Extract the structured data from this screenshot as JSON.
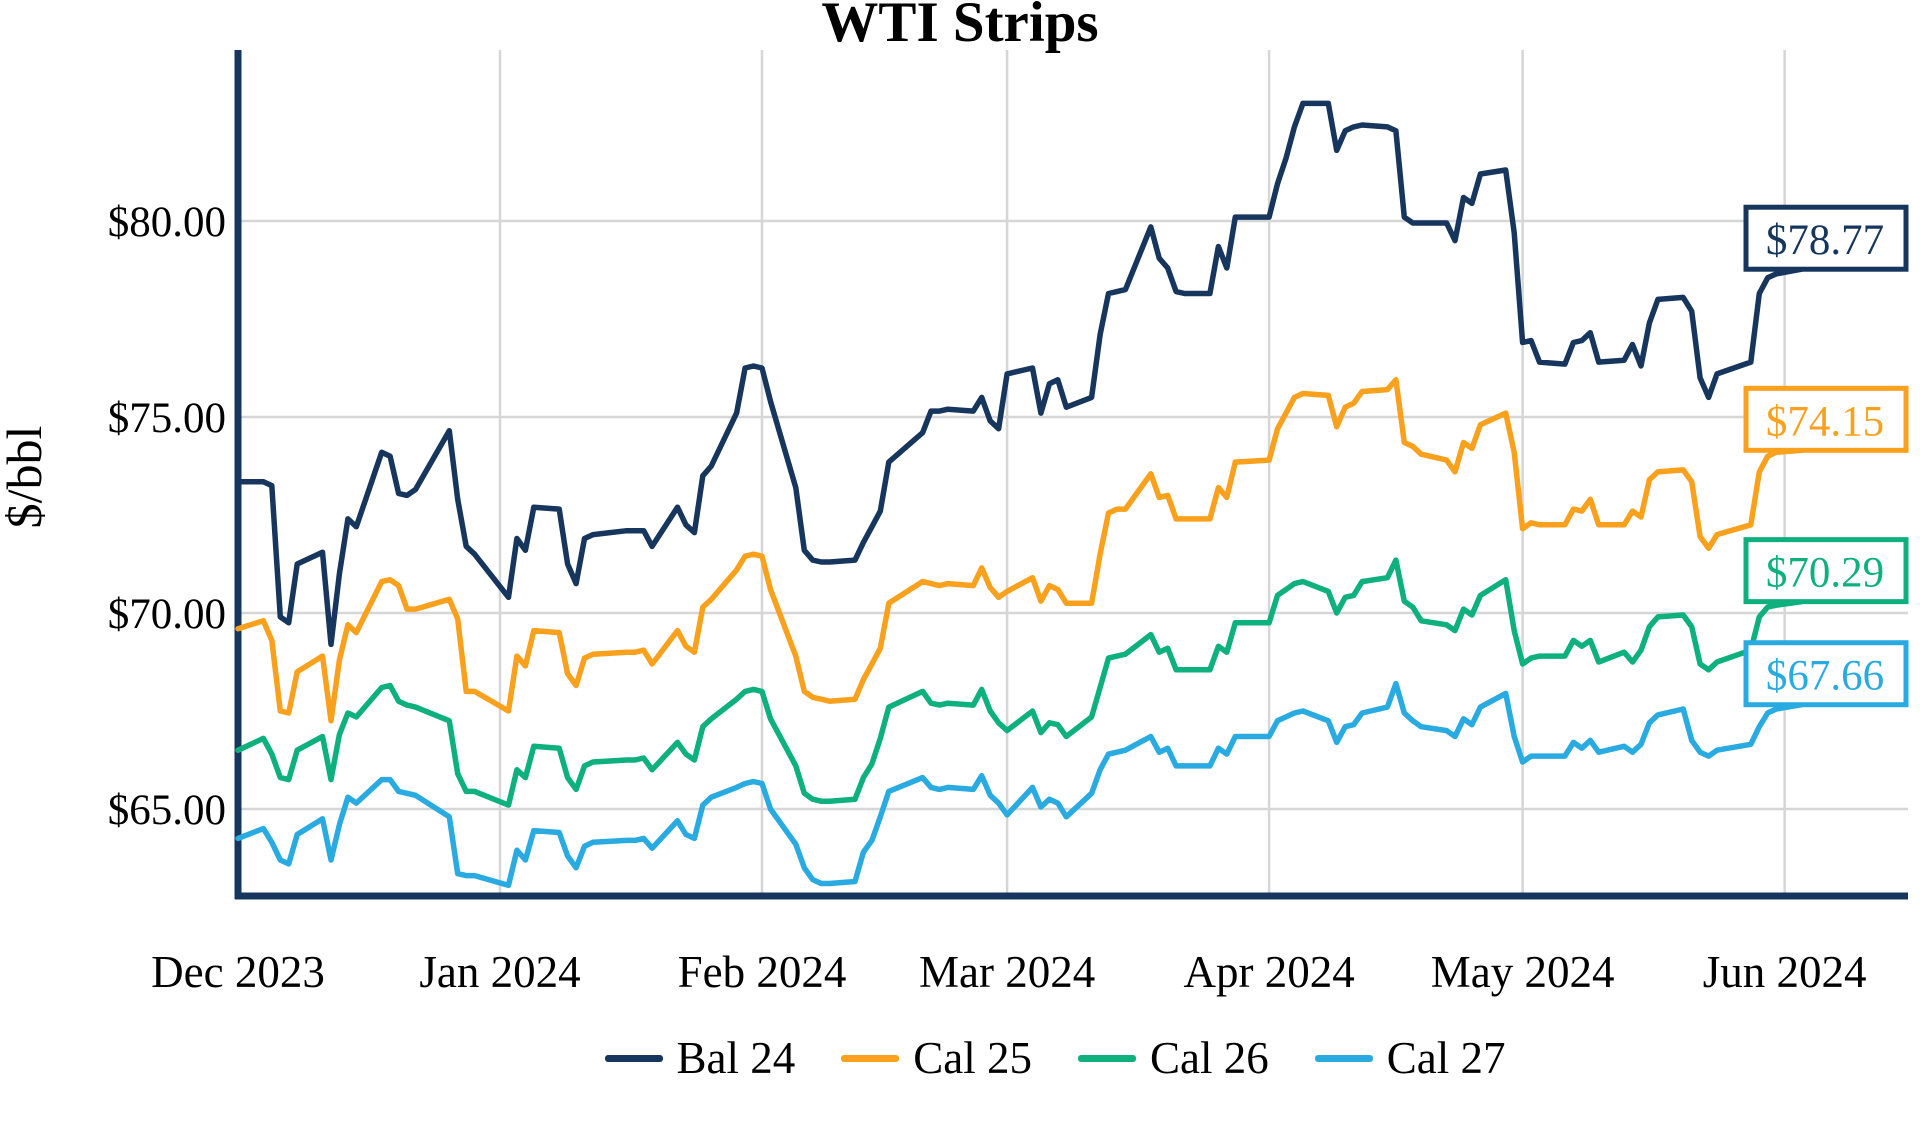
{
  "title": "WTI Strips",
  "y_axis": {
    "label": "$/bbl"
  },
  "legend": [
    {
      "label": "Bal 24",
      "color": "#17365d"
    },
    {
      "label": "Cal 25",
      "color": "#f9a11d"
    },
    {
      "label": "Cal 26",
      "color": "#0eb07d"
    },
    {
      "label": "Cal 27",
      "color": "#29abe2"
    }
  ],
  "chart_data": {
    "type": "line",
    "title": "WTI Strips",
    "ylabel": "$/bbl",
    "grid": true,
    "legend_position": "bottom",
    "ylim": [
      61.9,
      84.3
    ],
    "y_ticks": [
      {
        "value": 80,
        "label": "$80.00"
      },
      {
        "value": 75,
        "label": "$75.00"
      },
      {
        "value": 70,
        "label": "$70.00"
      },
      {
        "value": 65,
        "label": "$65.00"
      }
    ],
    "x_ticks": [
      {
        "date": "2023-12-01",
        "label": "Dec 2023"
      },
      {
        "date": "2024-01-01",
        "label": "Jan 2024"
      },
      {
        "date": "2024-02-01",
        "label": "Feb 2024"
      },
      {
        "date": "2024-03-01",
        "label": "Mar 2024"
      },
      {
        "date": "2024-04-01",
        "label": "Apr 2024"
      },
      {
        "date": "2024-05-01",
        "label": "May 2024"
      },
      {
        "date": "2024-06-01",
        "label": "Jun 2024"
      }
    ],
    "month_gridlines": [
      "2024-01-01",
      "2024-02-01",
      "2024-03-01",
      "2024-04-01",
      "2024-05-01",
      "2024-06-01"
    ],
    "dates": [
      "2023-12-01",
      "2023-12-04",
      "2023-12-05",
      "2023-12-06",
      "2023-12-07",
      "2023-12-08",
      "2023-12-11",
      "2023-12-12",
      "2023-12-13",
      "2023-12-14",
      "2023-12-15",
      "2023-12-18",
      "2023-12-19",
      "2023-12-20",
      "2023-12-21",
      "2023-12-22",
      "2023-12-26",
      "2023-12-27",
      "2023-12-28",
      "2023-12-29",
      "2024-01-02",
      "2024-01-03",
      "2024-01-04",
      "2024-01-05",
      "2024-01-08",
      "2024-01-09",
      "2024-01-10",
      "2024-01-11",
      "2024-01-12",
      "2024-01-16",
      "2024-01-17",
      "2024-01-18",
      "2024-01-19",
      "2024-01-22",
      "2024-01-23",
      "2024-01-24",
      "2024-01-25",
      "2024-01-26",
      "2024-01-29",
      "2024-01-30",
      "2024-01-31",
      "2024-02-01",
      "2024-02-02",
      "2024-02-05",
      "2024-02-06",
      "2024-02-07",
      "2024-02-08",
      "2024-02-09",
      "2024-02-12",
      "2024-02-13",
      "2024-02-14",
      "2024-02-15",
      "2024-02-16",
      "2024-02-20",
      "2024-02-21",
      "2024-02-22",
      "2024-02-23",
      "2024-02-26",
      "2024-02-27",
      "2024-02-28",
      "2024-02-29",
      "2024-03-01",
      "2024-03-04",
      "2024-03-05",
      "2024-03-06",
      "2024-03-07",
      "2024-03-08",
      "2024-03-11",
      "2024-03-12",
      "2024-03-13",
      "2024-03-14",
      "2024-03-15",
      "2024-03-18",
      "2024-03-19",
      "2024-03-20",
      "2024-03-21",
      "2024-03-22",
      "2024-03-25",
      "2024-03-26",
      "2024-03-27",
      "2024-03-28",
      "2024-04-01",
      "2024-04-02",
      "2024-04-03",
      "2024-04-04",
      "2024-04-05",
      "2024-04-08",
      "2024-04-09",
      "2024-04-10",
      "2024-04-11",
      "2024-04-12",
      "2024-04-15",
      "2024-04-16",
      "2024-04-17",
      "2024-04-18",
      "2024-04-19",
      "2024-04-22",
      "2024-04-23",
      "2024-04-24",
      "2024-04-25",
      "2024-04-26",
      "2024-04-29",
      "2024-04-30",
      "2024-05-01",
      "2024-05-02",
      "2024-05-03",
      "2024-05-06",
      "2024-05-07",
      "2024-05-08",
      "2024-05-09",
      "2024-05-10",
      "2024-05-13",
      "2024-05-14",
      "2024-05-15",
      "2024-05-16",
      "2024-05-17",
      "2024-05-20",
      "2024-05-21",
      "2024-05-22",
      "2024-05-23",
      "2024-05-24",
      "2024-05-28",
      "2024-05-29",
      "2024-05-30",
      "2024-05-31",
      "2024-06-03"
    ],
    "series": [
      {
        "name": "Bal 24",
        "color": "#17365d",
        "end_label": "$78.77",
        "end_value": 78.77,
        "values": [
          73.35,
          73.35,
          73.25,
          69.9,
          69.75,
          71.25,
          71.55,
          69.2,
          71.0,
          72.4,
          72.2,
          74.1,
          74.0,
          73.05,
          73.0,
          73.15,
          74.65,
          72.9,
          71.7,
          71.5,
          70.4,
          71.9,
          71.6,
          72.7,
          72.65,
          71.25,
          70.75,
          71.9,
          72.0,
          72.1,
          72.1,
          72.1,
          71.7,
          72.7,
          72.25,
          72.05,
          73.5,
          73.75,
          75.1,
          76.25,
          76.3,
          76.25,
          75.4,
          73.2,
          71.6,
          71.35,
          71.3,
          71.3,
          71.35,
          71.8,
          72.2,
          72.6,
          73.85,
          74.6,
          75.15,
          75.15,
          75.2,
          75.15,
          75.5,
          74.9,
          74.7,
          76.1,
          76.25,
          75.1,
          75.85,
          75.95,
          75.25,
          75.5,
          77.1,
          78.15,
          78.2,
          78.25,
          79.85,
          79.05,
          78.8,
          78.2,
          78.15,
          78.15,
          79.35,
          78.8,
          80.1,
          80.1,
          80.95,
          81.6,
          82.4,
          83.0,
          83.0,
          81.8,
          82.3,
          82.4,
          82.45,
          82.4,
          82.3,
          80.1,
          79.95,
          79.95,
          79.95,
          79.5,
          80.6,
          80.45,
          81.2,
          81.3,
          79.7,
          76.9,
          76.95,
          76.4,
          76.35,
          76.9,
          76.95,
          77.15,
          76.4,
          76.45,
          76.85,
          76.3,
          77.4,
          78.0,
          78.05,
          77.7,
          76.0,
          75.5,
          76.1,
          76.4,
          78.15,
          78.55,
          78.65,
          78.77
        ]
      },
      {
        "name": "Cal 25",
        "color": "#f9a11d",
        "end_label": "$74.15",
        "end_value": 74.15,
        "values": [
          69.6,
          69.8,
          69.3,
          67.5,
          67.45,
          68.5,
          68.9,
          67.25,
          68.8,
          69.7,
          69.5,
          70.8,
          70.85,
          70.7,
          70.1,
          70.1,
          70.35,
          69.85,
          68.0,
          68.0,
          67.5,
          68.9,
          68.65,
          69.55,
          69.5,
          68.45,
          68.15,
          68.85,
          68.95,
          69.0,
          69.0,
          69.05,
          68.7,
          69.55,
          69.15,
          69.0,
          70.15,
          70.35,
          71.1,
          71.45,
          71.5,
          71.45,
          70.6,
          68.9,
          68.0,
          67.85,
          67.8,
          67.75,
          67.8,
          68.3,
          68.7,
          69.1,
          70.25,
          70.8,
          70.75,
          70.7,
          70.75,
          70.7,
          71.15,
          70.65,
          70.4,
          70.55,
          70.9,
          70.3,
          70.7,
          70.6,
          70.25,
          70.25,
          71.5,
          72.55,
          72.65,
          72.65,
          73.55,
          72.95,
          73.0,
          72.4,
          72.4,
          72.4,
          73.2,
          72.95,
          73.85,
          73.9,
          74.7,
          75.1,
          75.5,
          75.6,
          75.55,
          74.75,
          75.25,
          75.35,
          75.65,
          75.7,
          75.95,
          74.35,
          74.25,
          74.05,
          73.9,
          73.6,
          74.35,
          74.2,
          74.8,
          75.1,
          74.1,
          72.15,
          72.3,
          72.25,
          72.25,
          72.65,
          72.6,
          72.9,
          72.25,
          72.25,
          72.6,
          72.45,
          73.4,
          73.6,
          73.65,
          73.35,
          71.95,
          71.65,
          72.0,
          72.25,
          73.6,
          74.0,
          74.1,
          74.15
        ]
      },
      {
        "name": "Cal 26",
        "color": "#0eb07d",
        "end_label": "$70.29",
        "end_value": 70.29,
        "values": [
          66.5,
          66.8,
          66.4,
          65.8,
          65.75,
          66.5,
          66.85,
          65.75,
          66.9,
          67.45,
          67.35,
          68.1,
          68.15,
          67.75,
          67.65,
          67.6,
          67.25,
          65.9,
          65.45,
          65.45,
          65.1,
          66.0,
          65.8,
          66.6,
          66.55,
          65.8,
          65.5,
          66.1,
          66.2,
          66.25,
          66.25,
          66.3,
          66.0,
          66.7,
          66.4,
          66.25,
          67.1,
          67.3,
          67.8,
          68.0,
          68.05,
          68.0,
          67.3,
          66.1,
          65.4,
          65.25,
          65.2,
          65.2,
          65.25,
          65.8,
          66.15,
          66.8,
          67.6,
          68.0,
          67.7,
          67.65,
          67.7,
          67.65,
          68.05,
          67.5,
          67.2,
          67.0,
          67.5,
          66.95,
          67.2,
          67.15,
          66.85,
          67.35,
          68.1,
          68.85,
          68.9,
          68.95,
          69.45,
          69.0,
          69.1,
          68.55,
          68.55,
          68.55,
          69.15,
          69.0,
          69.75,
          69.75,
          70.45,
          70.6,
          70.75,
          70.8,
          70.55,
          70.0,
          70.4,
          70.45,
          70.8,
          70.9,
          71.35,
          70.3,
          70.15,
          69.8,
          69.7,
          69.55,
          70.1,
          69.95,
          70.45,
          70.85,
          69.55,
          68.7,
          68.85,
          68.9,
          68.9,
          69.3,
          69.15,
          69.3,
          68.75,
          69.0,
          68.75,
          69.05,
          69.65,
          69.9,
          69.95,
          69.65,
          68.7,
          68.55,
          68.75,
          69.05,
          69.9,
          70.15,
          70.2,
          70.29
        ]
      },
      {
        "name": "Cal 27",
        "color": "#29abe2",
        "end_label": "$67.66",
        "end_value": 67.66,
        "values": [
          64.25,
          64.5,
          64.15,
          63.7,
          63.6,
          64.35,
          64.75,
          63.7,
          64.6,
          65.3,
          65.15,
          65.75,
          65.75,
          65.45,
          65.4,
          65.35,
          64.8,
          63.35,
          63.3,
          63.3,
          63.05,
          63.95,
          63.7,
          64.45,
          64.4,
          63.8,
          63.5,
          64.05,
          64.15,
          64.2,
          64.2,
          64.25,
          64.0,
          64.7,
          64.35,
          64.25,
          65.1,
          65.3,
          65.55,
          65.65,
          65.7,
          65.65,
          65.0,
          64.1,
          63.5,
          63.2,
          63.1,
          63.1,
          63.15,
          63.9,
          64.2,
          64.8,
          65.45,
          65.8,
          65.55,
          65.5,
          65.55,
          65.5,
          65.85,
          65.35,
          65.15,
          64.85,
          65.55,
          65.05,
          65.25,
          65.15,
          64.8,
          65.4,
          66.0,
          66.4,
          66.45,
          66.5,
          66.85,
          66.45,
          66.55,
          66.1,
          66.1,
          66.1,
          66.55,
          66.4,
          66.85,
          66.85,
          67.25,
          67.35,
          67.45,
          67.5,
          67.25,
          66.7,
          67.1,
          67.15,
          67.45,
          67.6,
          68.2,
          67.45,
          67.25,
          67.1,
          67.0,
          66.85,
          67.3,
          67.15,
          67.6,
          67.95,
          66.85,
          66.2,
          66.35,
          66.35,
          66.35,
          66.7,
          66.55,
          66.75,
          66.45,
          66.6,
          66.45,
          66.65,
          67.2,
          67.4,
          67.55,
          66.75,
          66.45,
          66.35,
          66.5,
          66.65,
          67.1,
          67.45,
          67.55,
          67.66
        ]
      }
    ]
  }
}
